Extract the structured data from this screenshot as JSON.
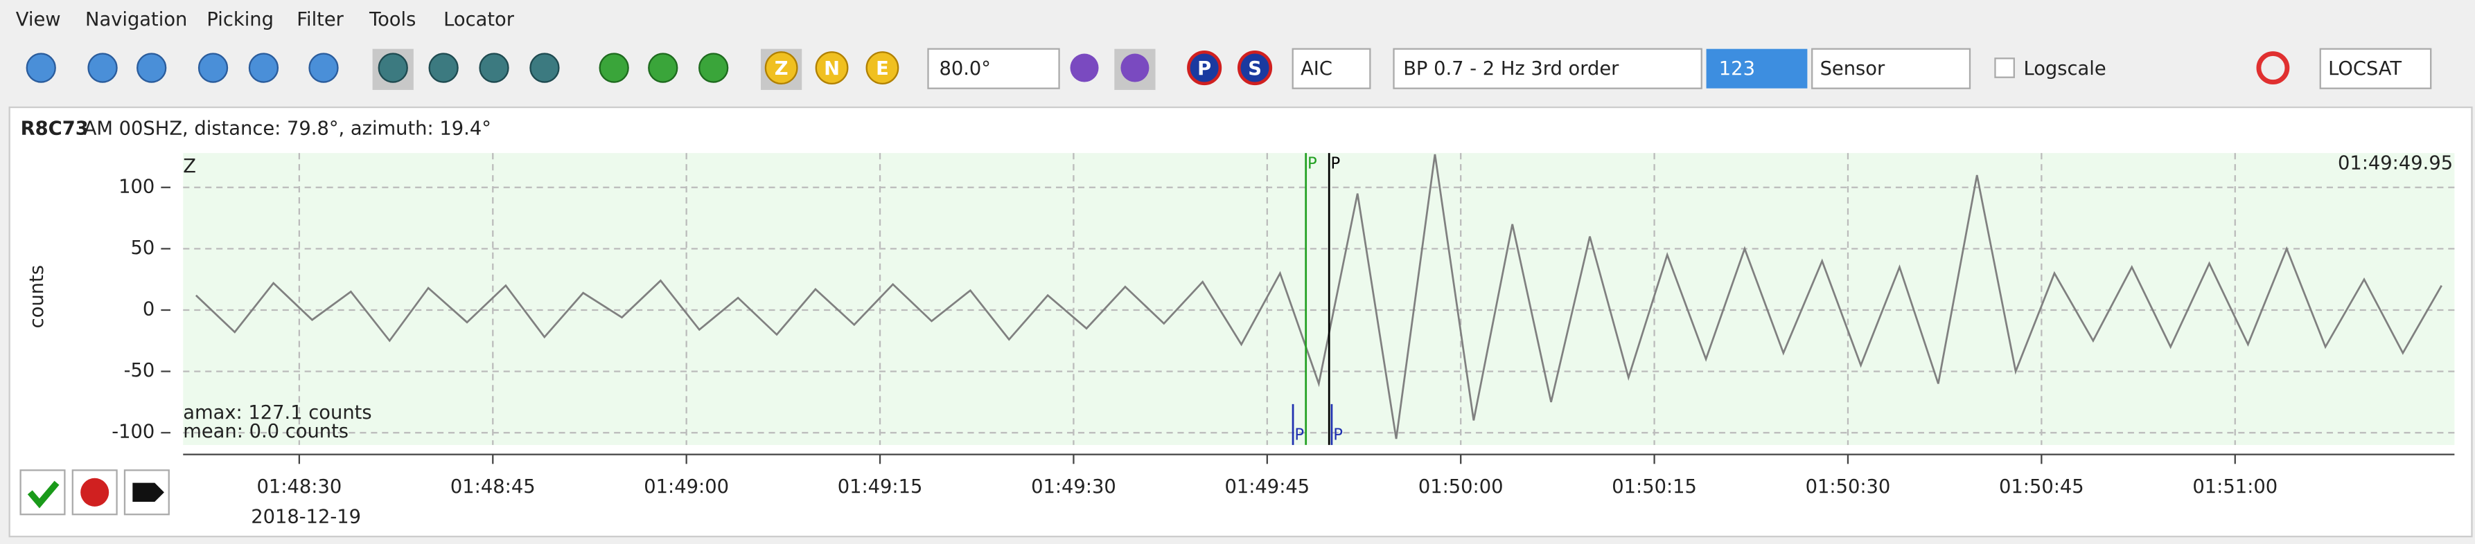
{
  "menu": [
    "View",
    "Navigation",
    "Picking",
    "Filter",
    "Tools",
    "Locator"
  ],
  "toolbar": {
    "component_buttons": [
      "Z",
      "N",
      "E"
    ],
    "pick_buttons": [
      "P",
      "S"
    ],
    "angle": "80.0°",
    "picker": "AIC",
    "filter": "BP 0.7 - 2 Hz  3rd order",
    "channel": "123",
    "unit": "Sensor",
    "logscale": "Logscale",
    "locator": "LOCSAT"
  },
  "trace": {
    "station": "R8C73",
    "info": "AM  00SHZ, distance: 79.8°, azimuth: 19.4°",
    "component": "Z",
    "time_label": "01:49:49.95",
    "amax": "amax: 127.1 counts",
    "mean": "mean: 0.0 counts",
    "date": "2018-12-19"
  },
  "chart_data": {
    "type": "line",
    "y_label": "counts",
    "color": "#808080",
    "grid": true,
    "x": [
      6502,
      6505,
      6508,
      6511,
      6514,
      6517,
      6520,
      6523,
      6526,
      6529,
      6532,
      6535,
      6538,
      6541,
      6544,
      6547,
      6550,
      6553,
      6556,
      6559,
      6562,
      6565,
      6568,
      6571,
      6574,
      6577,
      6580,
      6583,
      6586,
      6589,
      6592,
      6595,
      6598,
      6601,
      6604,
      6607,
      6610,
      6613,
      6616,
      6619,
      6622,
      6625,
      6628,
      6631,
      6634,
      6637,
      6640,
      6643,
      6646,
      6649,
      6652,
      6655,
      6658,
      6661,
      6664,
      6667,
      6670,
      6673,
      6676
    ],
    "values": [
      12,
      -18,
      22,
      -8,
      15,
      -25,
      18,
      -10,
      20,
      -22,
      14,
      -6,
      24,
      -16,
      10,
      -20,
      17,
      -12,
      21,
      -9,
      16,
      -24,
      12,
      -15,
      19,
      -11,
      23,
      -28,
      30,
      -60,
      95,
      -105,
      127,
      -90,
      70,
      -75,
      60,
      -55,
      45,
      -40,
      50,
      -35,
      40,
      -45,
      35,
      -60,
      110,
      -50,
      30,
      -25,
      35,
      -30,
      38,
      -28,
      50,
      -30,
      25,
      -35,
      20
    ],
    "xlim": [
      6501,
      6677
    ],
    "ylim": [
      -110,
      128
    ],
    "xticks": [
      {
        "value": 6510,
        "label": "01:48:30"
      },
      {
        "value": 6525,
        "label": "01:48:45"
      },
      {
        "value": 6540,
        "label": "01:49:00"
      },
      {
        "value": 6555,
        "label": "01:49:15"
      },
      {
        "value": 6570,
        "label": "01:49:30"
      },
      {
        "value": 6585,
        "label": "01:49:45"
      },
      {
        "value": 6600,
        "label": "01:50:00"
      },
      {
        "value": 6615,
        "label": "01:50:15"
      },
      {
        "value": 6630,
        "label": "01:50:30"
      },
      {
        "value": 6645,
        "label": "01:50:45"
      },
      {
        "value": 6660,
        "label": "01:51:00"
      }
    ],
    "yticks": [
      -100,
      -50,
      0,
      50,
      100
    ],
    "picks": [
      {
        "x": 6588,
        "label": "P",
        "color": "#22a022",
        "position": "top"
      },
      {
        "x": 6589.8,
        "label": "P",
        "color": "#000000",
        "position": "top"
      },
      {
        "x": 6587,
        "label": "P",
        "color": "#2030b0",
        "position": "bottom"
      },
      {
        "x": 6590,
        "label": "P",
        "color": "#2030b0",
        "position": "bottom"
      }
    ]
  }
}
